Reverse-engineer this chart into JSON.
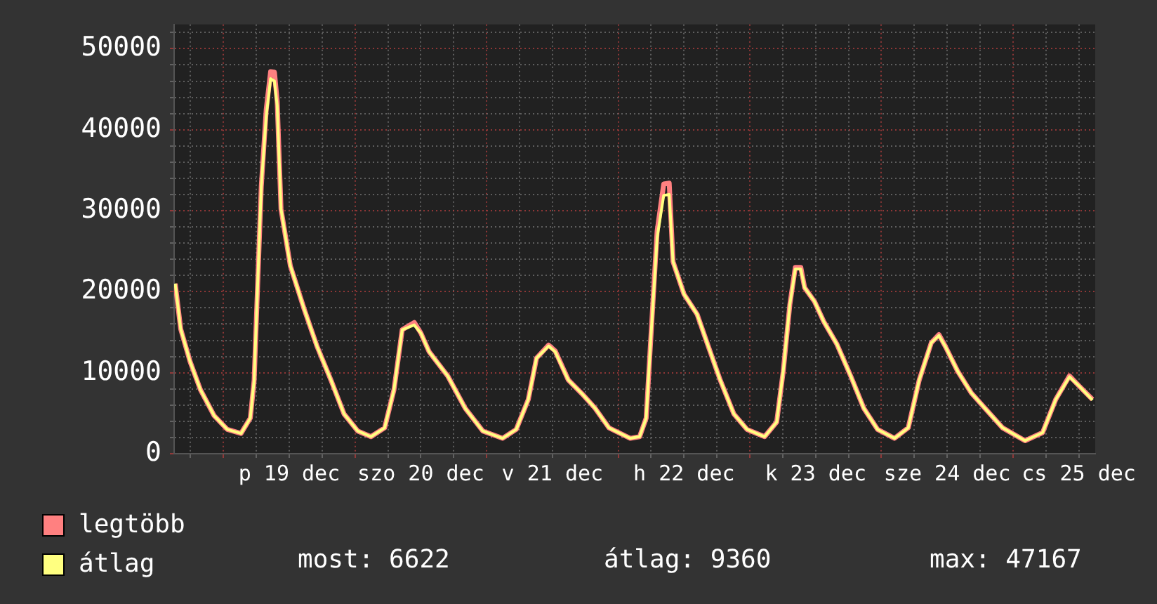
{
  "chart_data": {
    "type": "line",
    "x": [
      "--12-18T15:12",
      "--12-18T16:12",
      "--12-18T17:54",
      "--12-18T19:48",
      "--12-18T22:18",
      "--12-19T00:42",
      "--12-19T03:12",
      "--12-19T04:54",
      "--12-19T05:36",
      "--12-19T06:06",
      "--12-19T06:54",
      "--12-19T07:48",
      "--12-19T08:36",
      "--12-19T09:18",
      "--12-19T09:48",
      "--12-19T10:30",
      "--12-19T12:12",
      "--12-19T14:42",
      "--12-19T17:06",
      "--12-19T19:36",
      "--12-19T22:00",
      "--12-20T00:30",
      "--12-20T02:54",
      "--12-20T05:24",
      "--12-20T07:06",
      "--12-20T08:36",
      "--12-20T10:48",
      "--12-20T12:00",
      "--12-20T13:30",
      "--12-20T16:54",
      "--12-20T20:06",
      "--12-20T23:18",
      "--12-21T02:54",
      "--12-21T05:24",
      "--12-21T07:36",
      "--12-21T09:06",
      "--12-21T11:18",
      "--12-21T12:30",
      "--12-21T14:54",
      "--12-21T17:24",
      "--12-21T19:48",
      "--12-21T22:18",
      "--12-22T02:12",
      "--12-22T03:54",
      "--12-22T05:06",
      "--12-22T05:54",
      "--12-22T07:06",
      "--12-22T08:18",
      "--12-22T09:18",
      "--12-22T10:00",
      "--12-22T12:00",
      "--12-22T14:24",
      "--12-22T16:12",
      "--12-22T18:36",
      "--12-22T21:06",
      "--12-22T23:30",
      "--12-23T02:42",
      "--12-23T04:54",
      "--12-23T06:06",
      "--12-23T07:18",
      "--12-23T08:18",
      "--12-23T09:18",
      "--12-23T10:00",
      "--12-23T11:48",
      "--12-23T13:30",
      "--12-23T15:54",
      "--12-23T18:24",
      "--12-23T20:48",
      "--12-23T23:18",
      "--12-24T02:24",
      "--12-24T04:54",
      "--12-24T06:54",
      "--12-24T09:06",
      "--12-24T10:30",
      "--12-24T11:42",
      "--12-24T13:54",
      "--12-24T16:24",
      "--12-24T18:54",
      "--12-24T22:06",
      "--12-25T02:12",
      "--12-25T05:24",
      "--12-25T07:48",
      "--12-25T10:18",
      "--12-25T12:00",
      "--12-25T14:30"
    ],
    "series": [
      {
        "name": "legtöbb",
        "color": "#ff8080",
        "values": [
          21000,
          15400,
          11400,
          7900,
          4700,
          3000,
          2500,
          4400,
          9100,
          18400,
          33000,
          42500,
          47167,
          47100,
          43500,
          30200,
          23200,
          17900,
          13200,
          9100,
          4900,
          2800,
          2100,
          3200,
          7900,
          15300,
          16200,
          14900,
          12600,
          9600,
          5600,
          2800,
          1900,
          3000,
          6700,
          11800,
          13400,
          12700,
          9100,
          7400,
          5600,
          3200,
          1900,
          2100,
          4400,
          13700,
          27500,
          33300,
          33400,
          23700,
          19700,
          17200,
          13700,
          9100,
          4900,
          3000,
          2100,
          3900,
          10200,
          18400,
          23000,
          23000,
          20500,
          18800,
          16300,
          13500,
          9600,
          5600,
          3000,
          1900,
          3200,
          9100,
          13700,
          14700,
          13200,
          10200,
          7500,
          5600,
          3200,
          1600,
          2600,
          6700,
          9600,
          8400,
          6700
        ]
      },
      {
        "name": "átlag",
        "color": "#ffff80",
        "values": [
          21000,
          15400,
          11400,
          7900,
          4700,
          3000,
          2500,
          4400,
          9100,
          18400,
          33000,
          41700,
          46300,
          46000,
          43000,
          30200,
          23200,
          17900,
          13200,
          9100,
          4900,
          2800,
          2100,
          3200,
          7900,
          15300,
          15900,
          14900,
          12600,
          9600,
          5600,
          2800,
          1900,
          3000,
          6700,
          11800,
          13300,
          12600,
          9100,
          7400,
          5600,
          3200,
          1900,
          2100,
          4400,
          13700,
          26700,
          31900,
          32000,
          23700,
          19700,
          17200,
          13700,
          9100,
          4900,
          3000,
          2100,
          3900,
          10200,
          18400,
          22800,
          22800,
          20500,
          18800,
          16300,
          13500,
          9600,
          5600,
          3000,
          1900,
          3200,
          9100,
          13700,
          14600,
          13200,
          10200,
          7500,
          5600,
          3200,
          1600,
          2600,
          6700,
          9500,
          8400,
          6622
        ]
      }
    ],
    "xlim": [
      "--12-18T15:00",
      "--12-25T15:00"
    ],
    "xticks": [
      {
        "value": "--12-18T18:00",
        "label": null
      },
      {
        "value": "--12-19T00:00",
        "label": null
      },
      {
        "value": "--12-19T06:00",
        "label": null
      },
      {
        "value": "--12-19T12:00",
        "label": "p 19 dec"
      },
      {
        "value": "--12-19T18:00",
        "label": null
      },
      {
        "value": "--12-20T00:00",
        "label": null
      },
      {
        "value": "--12-20T06:00",
        "label": null
      },
      {
        "value": "--12-20T12:00",
        "label": "szo 20 dec"
      },
      {
        "value": "--12-20T18:00",
        "label": null
      },
      {
        "value": "--12-21T00:00",
        "label": null
      },
      {
        "value": "--12-21T06:00",
        "label": null
      },
      {
        "value": "--12-21T12:00",
        "label": "v 21 dec"
      },
      {
        "value": "--12-21T18:00",
        "label": null
      },
      {
        "value": "--12-22T00:00",
        "label": null
      },
      {
        "value": "--12-22T06:00",
        "label": null
      },
      {
        "value": "--12-22T12:00",
        "label": "h 22 dec"
      },
      {
        "value": "--12-22T18:00",
        "label": null
      },
      {
        "value": "--12-23T00:00",
        "label": null
      },
      {
        "value": "--12-23T06:00",
        "label": null
      },
      {
        "value": "--12-23T12:00",
        "label": "k 23 dec"
      },
      {
        "value": "--12-23T18:00",
        "label": null
      },
      {
        "value": "--12-24T00:00",
        "label": null
      },
      {
        "value": "--12-24T06:00",
        "label": null
      },
      {
        "value": "--12-24T12:00",
        "label": "sze 24 dec"
      },
      {
        "value": "--12-24T18:00",
        "label": null
      },
      {
        "value": "--12-25T00:00",
        "label": null
      },
      {
        "value": "--12-25T06:00",
        "label": null
      },
      {
        "value": "--12-25T12:00",
        "label": "cs 25 dec"
      }
    ],
    "ylim": [
      0,
      53000
    ],
    "yticks": [
      0,
      {
        "value": 2000,
        "label": null
      },
      {
        "value": 4000,
        "label": null
      },
      {
        "value": 6000,
        "label": null
      },
      {
        "value": 8000,
        "label": null
      },
      10000,
      {
        "value": 12000,
        "label": null
      },
      {
        "value": 14000,
        "label": null
      },
      {
        "value": 16000,
        "label": null
      },
      {
        "value": 18000,
        "label": null
      },
      20000,
      {
        "value": 22000,
        "label": null
      },
      {
        "value": 24000,
        "label": null
      },
      {
        "value": 26000,
        "label": null
      },
      {
        "value": 28000,
        "label": null
      },
      30000,
      {
        "value": 32000,
        "label": null
      },
      {
        "value": 34000,
        "label": null
      },
      {
        "value": 36000,
        "label": null
      },
      {
        "value": 38000,
        "label": null
      },
      40000,
      {
        "value": 42000,
        "label": null
      },
      {
        "value": 44000,
        "label": null
      },
      {
        "value": 46000,
        "label": null
      },
      {
        "value": 48000,
        "label": null
      },
      50000,
      {
        "value": 52000,
        "label": null
      }
    ],
    "grid": true,
    "legend": "bottom left",
    "annotations": [
      "most: 6622",
      "átlag: 9360",
      "max: 47167"
    ]
  }
}
